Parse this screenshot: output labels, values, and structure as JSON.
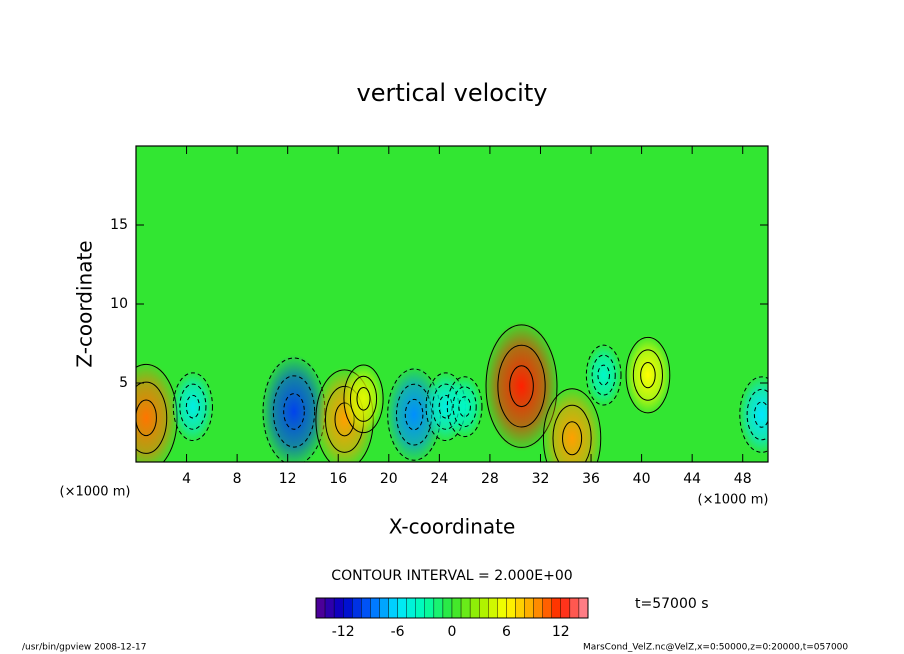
{
  "chart_data": {
    "type": "contour",
    "title": "vertical velocity",
    "xlabel": "X-coordinate",
    "ylabel": "Z-coordinate",
    "xunit_left": "(×1000 m)",
    "xunit_right": "(×1000 m)",
    "contour_note": "CONTOUR INTERVAL = 2.000E+00",
    "time_label": "t=57000 s",
    "footer_left": "/usr/bin/gpview   2008-12-17",
    "footer_right": "MarsCond_VelZ.nc@VelZ,x=0:50000,z=0:20000,t=057000",
    "xlim": [
      0,
      50
    ],
    "ylim": [
      0,
      20
    ],
    "xticks": [
      4,
      8,
      12,
      16,
      20,
      24,
      28,
      32,
      36,
      40,
      44,
      48
    ],
    "yticks": [
      5,
      10,
      15
    ],
    "clim": [
      -15,
      15
    ],
    "cticks": [
      -12,
      -6,
      0,
      6,
      12
    ],
    "colormap": [
      "#5a0090",
      "#0000c8",
      "#0064ff",
      "#00e6ff",
      "#00ffb0",
      "#32e632",
      "#a0f000",
      "#ffff00",
      "#ffa000",
      "#ff2000",
      "#ff90a0"
    ],
    "features": [
      {
        "x": 0.8,
        "z": 2.8,
        "value": 10
      },
      {
        "x": 4.5,
        "z": 3.5,
        "value": -5
      },
      {
        "x": 12.5,
        "z": 3.2,
        "value": -10
      },
      {
        "x": 16.5,
        "z": 2.7,
        "value": 9
      },
      {
        "x": 18,
        "z": 4,
        "value": 5
      },
      {
        "x": 22,
        "z": 3,
        "value": -8
      },
      {
        "x": 24.5,
        "z": 3.5,
        "value": -5
      },
      {
        "x": 26,
        "z": 3.5,
        "value": -4
      },
      {
        "x": 30.5,
        "z": 4.8,
        "value": 12
      },
      {
        "x": 34.5,
        "z": 1.5,
        "value": 9
      },
      {
        "x": 37,
        "z": 5.5,
        "value": -4
      },
      {
        "x": 40.5,
        "z": 5.5,
        "value": 6
      },
      {
        "x": 49.5,
        "z": 3,
        "value": -6
      }
    ]
  }
}
